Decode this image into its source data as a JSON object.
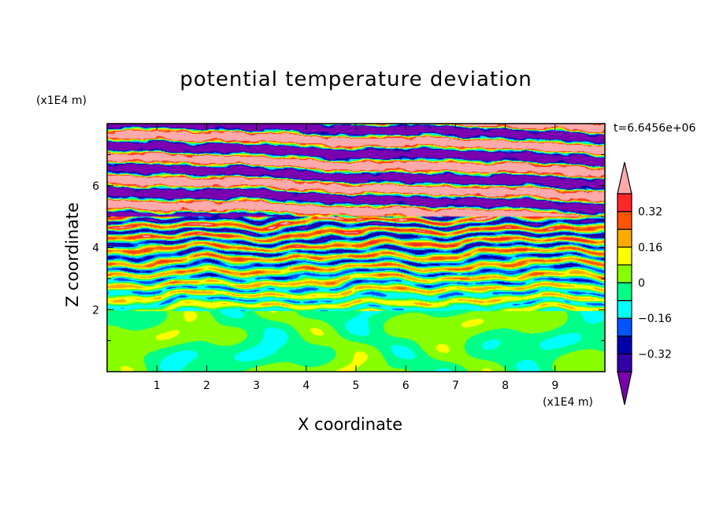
{
  "chart_data": {
    "type": "heatmap",
    "title": "potential temperature deviation",
    "xlabel": "X coordinate",
    "ylabel": "Z coordinate",
    "x_unit": "(x1E4 m)",
    "y_unit": "(x1E4 m)",
    "time_label": "t=6.6456e+06",
    "xlim": [
      0,
      10
    ],
    "ylim": [
      0,
      8
    ],
    "xticks": [
      "1",
      "2",
      "3",
      "4",
      "5",
      "6",
      "7",
      "8",
      "9"
    ],
    "yticks": [
      "2",
      "4",
      "6"
    ],
    "levels": [
      -0.4,
      -0.32,
      -0.24,
      -0.16,
      -0.08,
      0,
      0.08,
      0.16,
      0.24,
      0.32,
      0.4
    ],
    "colorbar_labels": [
      "0.32",
      "0.16",
      "0",
      "-0.16",
      "-0.32"
    ],
    "colors": [
      "#7a00b0",
      "#3300a8",
      "#0000aa",
      "#0055ff",
      "#00ffff",
      "#00ff88",
      "#88ff00",
      "#ffff00",
      "#ffaa00",
      "#ff5500",
      "#ff2828",
      "#ffaaaa"
    ],
    "regions": [
      {
        "z_range": [
          0,
          2
        ],
        "description": "near-zero values, -0.08 to 0.08"
      },
      {
        "z_range": [
          2,
          5
        ],
        "description": "mixed turbulent deviations, full range"
      },
      {
        "z_range": [
          5,
          8
        ],
        "description": "alternating extreme bands below -0.40 and above 0.40"
      }
    ]
  }
}
